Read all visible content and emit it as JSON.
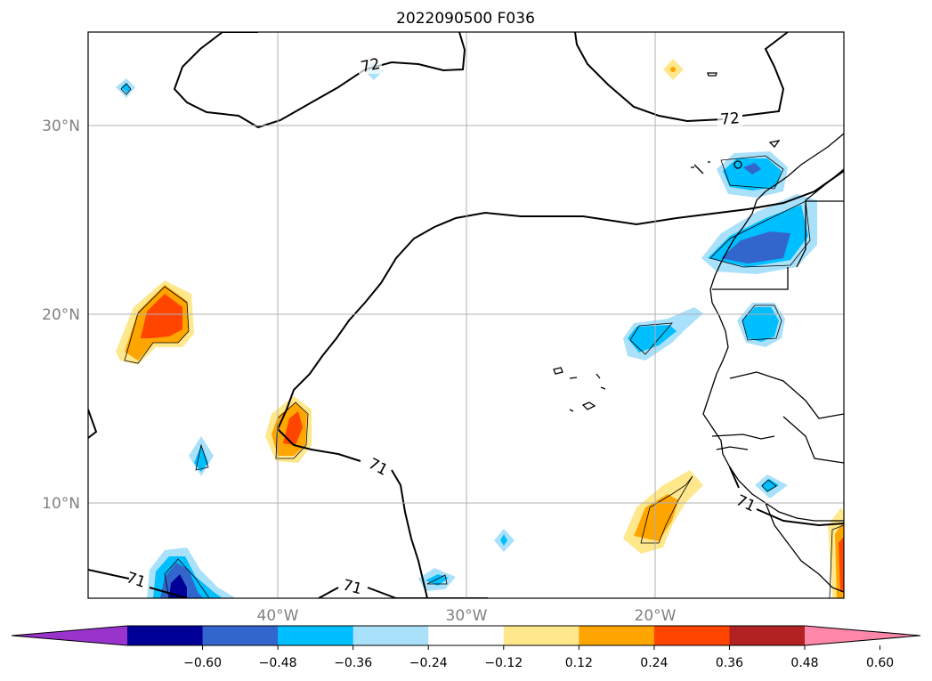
{
  "title": "2022090500 F036",
  "map": {
    "lat_ticks": [
      "30°N",
      "20°N",
      "10°N"
    ],
    "lon_ticks": [
      "40°W",
      "30°W",
      "20°W"
    ],
    "contour_labels": [
      "72",
      "72",
      "71",
      "71",
      "71",
      "71"
    ],
    "grid": true
  },
  "colorbar": {
    "ticks": [
      "−0.60",
      "−0.48",
      "−0.36",
      "−0.24",
      "−0.12",
      "0.12",
      "0.24",
      "0.36",
      "0.48",
      "0.60"
    ],
    "colors": [
      "#9933cc",
      "#000099",
      "#3366cc",
      "#00bfff",
      "#aae1fa",
      "#ffffff",
      "#ffe88c",
      "#ffa500",
      "#ff4500",
      "#b22222",
      "#ff88aa"
    ],
    "extend": "both"
  }
}
